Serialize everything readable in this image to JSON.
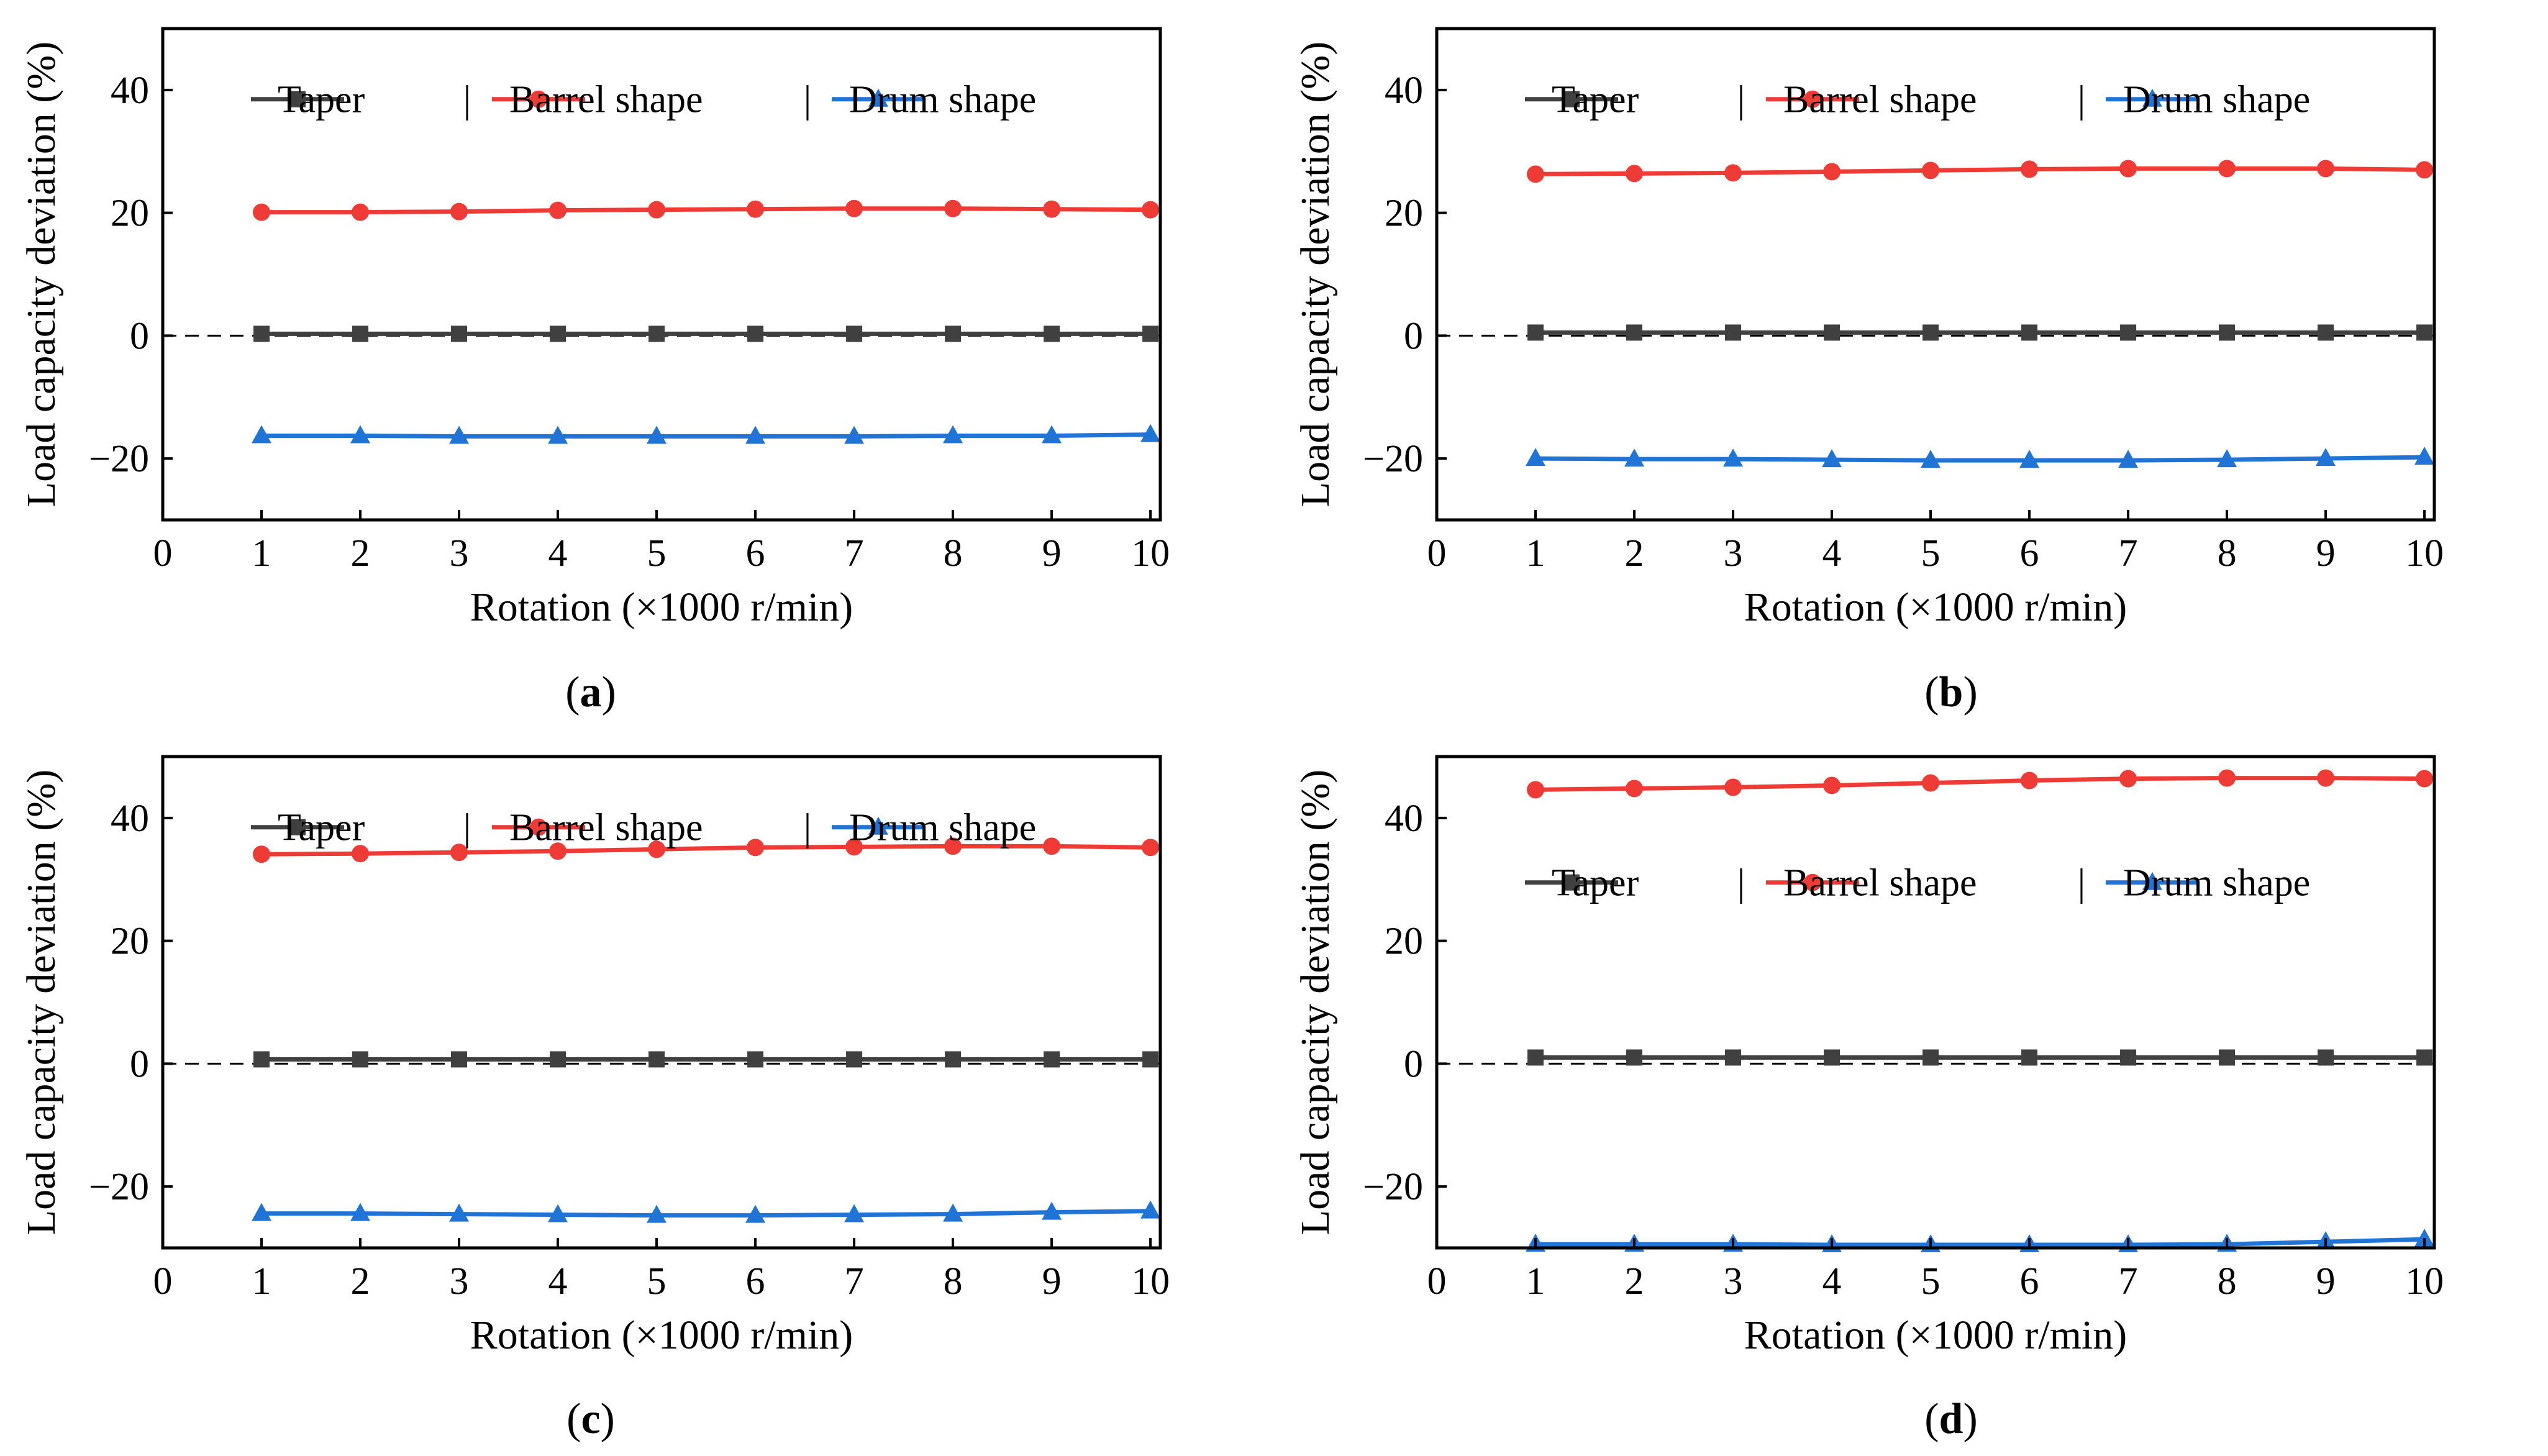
{
  "figure": {
    "colors": {
      "taper": "#404040",
      "barrel": "#ef3b36",
      "drum": "#1f74d6",
      "axis": "#000000",
      "zero_line": "#000000"
    },
    "legend_separator": "|"
  },
  "chart_data": [
    {
      "type": "line",
      "panel_label": "a",
      "caption_open": "(",
      "caption_close": ")",
      "xlabel": "Rotation (×1000 r/min)",
      "ylabel": "Load capacity deviation (%)",
      "xlim": [
        0,
        10.1
      ],
      "ylim": [
        -30,
        50
      ],
      "xticks": [
        0,
        1,
        2,
        3,
        4,
        5,
        6,
        7,
        8,
        9,
        10
      ],
      "yticks": [
        -20,
        0,
        20,
        40
      ],
      "ytick_labels": [
        "−20",
        "0",
        "20",
        "40"
      ],
      "reference_line": 0,
      "legend_position": "top",
      "x": [
        1,
        2,
        3,
        4,
        5,
        6,
        7,
        8,
        9,
        10
      ],
      "series": [
        {
          "name": "Taper",
          "marker": "square",
          "values": [
            0.3,
            0.3,
            0.3,
            0.3,
            0.3,
            0.3,
            0.3,
            0.3,
            0.3,
            0.3
          ]
        },
        {
          "name": "Barrel shape",
          "marker": "circle",
          "values": [
            20.1,
            20.1,
            20.2,
            20.4,
            20.5,
            20.6,
            20.7,
            20.7,
            20.6,
            20.5
          ]
        },
        {
          "name": "Drum shape",
          "marker": "triangle",
          "values": [
            -16.3,
            -16.3,
            -16.4,
            -16.4,
            -16.4,
            -16.4,
            -16.4,
            -16.3,
            -16.3,
            -16.1
          ]
        }
      ]
    },
    {
      "type": "line",
      "panel_label": "b",
      "caption_open": "(",
      "caption_close": ")",
      "xlabel": "Rotation (×1000 r/min)",
      "ylabel": "Load capacity deviation (%)",
      "xlim": [
        0,
        10.1
      ],
      "ylim": [
        -30,
        50
      ],
      "xticks": [
        0,
        1,
        2,
        3,
        4,
        5,
        6,
        7,
        8,
        9,
        10
      ],
      "yticks": [
        -20,
        0,
        20,
        40
      ],
      "ytick_labels": [
        "−20",
        "0",
        "20",
        "40"
      ],
      "reference_line": 0,
      "legend_position": "top",
      "x": [
        1,
        2,
        3,
        4,
        5,
        6,
        7,
        8,
        9,
        10
      ],
      "series": [
        {
          "name": "Taper",
          "marker": "square",
          "values": [
            0.5,
            0.5,
            0.5,
            0.5,
            0.5,
            0.5,
            0.5,
            0.5,
            0.5,
            0.5
          ]
        },
        {
          "name": "Barrel shape",
          "marker": "circle",
          "values": [
            26.3,
            26.4,
            26.5,
            26.7,
            26.9,
            27.1,
            27.2,
            27.2,
            27.2,
            27.0
          ]
        },
        {
          "name": "Drum shape",
          "marker": "triangle",
          "values": [
            -20.0,
            -20.1,
            -20.1,
            -20.2,
            -20.3,
            -20.3,
            -20.3,
            -20.2,
            -20.0,
            -19.8
          ]
        }
      ]
    },
    {
      "type": "line",
      "panel_label": "c",
      "caption_open": "(",
      "caption_close": ")",
      "xlabel": "Rotation (×1000 r/min)",
      "ylabel": "Load capacity deviation (%)",
      "xlim": [
        0,
        10.1
      ],
      "ylim": [
        -30,
        50
      ],
      "xticks": [
        0,
        1,
        2,
        3,
        4,
        5,
        6,
        7,
        8,
        9,
        10
      ],
      "yticks": [
        -20,
        0,
        20,
        40
      ],
      "ytick_labels": [
        "−20",
        "0",
        "20",
        "40"
      ],
      "reference_line": 0,
      "legend_position": "top",
      "x": [
        1,
        2,
        3,
        4,
        5,
        6,
        7,
        8,
        9,
        10
      ],
      "series": [
        {
          "name": "Taper",
          "marker": "square",
          "values": [
            0.7,
            0.7,
            0.7,
            0.7,
            0.7,
            0.7,
            0.7,
            0.7,
            0.7,
            0.7
          ]
        },
        {
          "name": "Barrel shape",
          "marker": "circle",
          "values": [
            34.1,
            34.2,
            34.4,
            34.6,
            34.9,
            35.2,
            35.3,
            35.4,
            35.4,
            35.2
          ]
        },
        {
          "name": "Drum shape",
          "marker": "triangle",
          "values": [
            -24.4,
            -24.4,
            -24.5,
            -24.6,
            -24.7,
            -24.7,
            -24.6,
            -24.5,
            -24.2,
            -24.0
          ]
        }
      ]
    },
    {
      "type": "line",
      "panel_label": "d",
      "caption_open": "(",
      "caption_close": ")",
      "xlabel": "Rotation (×1000 r/min)",
      "ylabel": "Load capacity deviation (%)",
      "xlim": [
        0,
        10.1
      ],
      "ylim": [
        -30,
        50
      ],
      "xticks": [
        0,
        1,
        2,
        3,
        4,
        5,
        6,
        7,
        8,
        9,
        10
      ],
      "yticks": [
        -20,
        0,
        20,
        40
      ],
      "ytick_labels": [
        "−20",
        "0",
        "20",
        "40"
      ],
      "reference_line": 0,
      "legend_position": "middle",
      "x": [
        1,
        2,
        3,
        4,
        5,
        6,
        7,
        8,
        9,
        10
      ],
      "series": [
        {
          "name": "Taper",
          "marker": "square",
          "values": [
            1.0,
            1.0,
            1.0,
            1.0,
            1.0,
            1.0,
            1.0,
            1.0,
            1.0,
            1.0
          ]
        },
        {
          "name": "Barrel shape",
          "marker": "circle",
          "values": [
            44.6,
            44.8,
            45.0,
            45.3,
            45.7,
            46.1,
            46.4,
            46.5,
            46.5,
            46.4
          ]
        },
        {
          "name": "Drum shape",
          "marker": "triangle",
          "values": [
            -29.4,
            -29.4,
            -29.4,
            -29.5,
            -29.5,
            -29.5,
            -29.5,
            -29.4,
            -29.0,
            -28.6
          ]
        }
      ]
    }
  ]
}
